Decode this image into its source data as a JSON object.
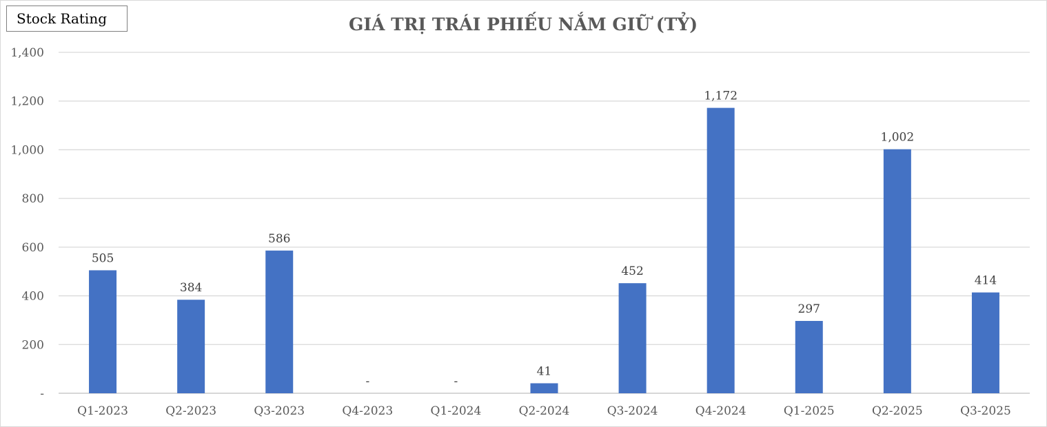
{
  "badge": {
    "label": "Stock Rating"
  },
  "chart_data": {
    "type": "bar",
    "title": "GIÁ TRỊ TRÁI PHIẾU NẮM GIỮ (TỶ)",
    "xlabel": "",
    "ylabel": "",
    "ylim": [
      0,
      1400
    ],
    "yticks": [
      0,
      200,
      400,
      600,
      800,
      1000,
      1200,
      1400
    ],
    "ytick_labels": [
      "-",
      "200",
      "400",
      "600",
      "800",
      "1,000",
      "1,200",
      "1,400"
    ],
    "grid": true,
    "legend": "none",
    "bar_color": "#4472C4",
    "categories": [
      "Q1-2023",
      "Q2-2023",
      "Q3-2023",
      "Q4-2023",
      "Q1-2024",
      "Q2-2024",
      "Q3-2024",
      "Q4-2024",
      "Q1-2025",
      "Q2-2025",
      "Q3-2025"
    ],
    "values": [
      505,
      384,
      586,
      0,
      0,
      41,
      452,
      1172,
      297,
      1002,
      414
    ],
    "data_labels": [
      "505",
      "384",
      "586",
      "-",
      "-",
      "41",
      "452",
      "1,172",
      "297",
      "1,002",
      "414"
    ]
  }
}
